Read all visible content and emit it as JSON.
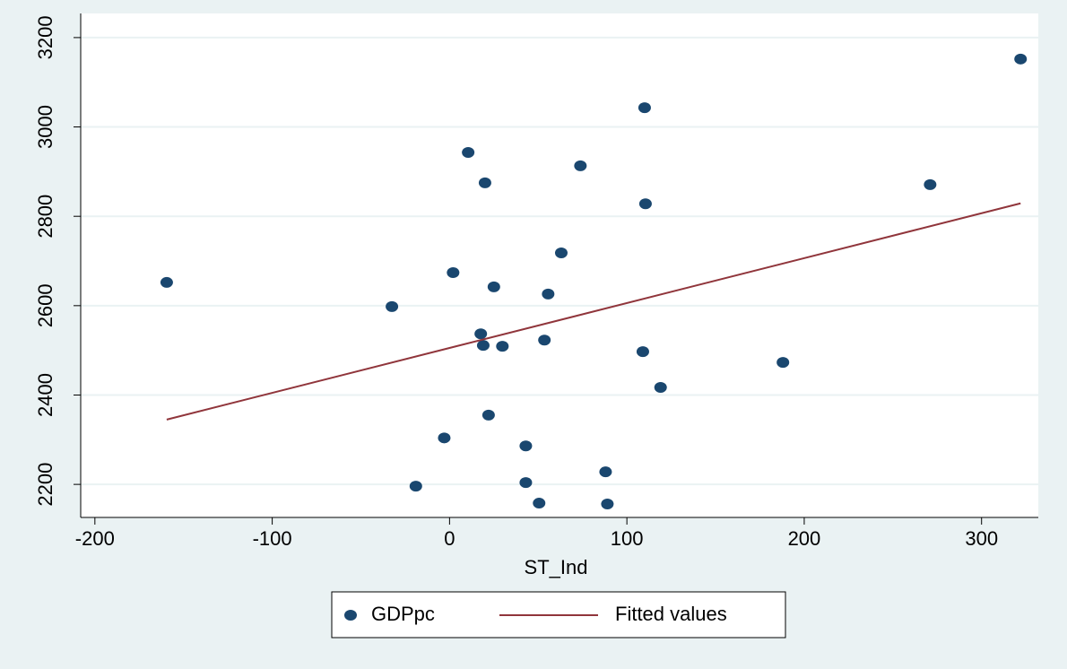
{
  "chart_data": {
    "type": "scatter",
    "xlabel": "ST_Ind",
    "xlim": [
      -208,
      332
    ],
    "xticks": [
      -200,
      -100,
      0,
      100,
      200,
      300
    ],
    "ylim": [
      2126,
      3254
    ],
    "yticks": [
      2200,
      2400,
      2600,
      2800,
      3000,
      3200
    ],
    "grid": true,
    "legend": "bottom",
    "series": [
      {
        "name": "GDPpc",
        "type": "scatter",
        "color": "#1a476f",
        "x": [
          -159.5,
          -32.5,
          2,
          10.5,
          20,
          25,
          17.6,
          19,
          29.8,
          22,
          -3,
          -19,
          43,
          43,
          50.5,
          53.5,
          55.6,
          63,
          73.8,
          88,
          89,
          110,
          110.5,
          109,
          119,
          188,
          271,
          322
        ],
        "values": [
          2652,
          2598,
          2674,
          2943,
          2875,
          2642,
          2537,
          2511,
          2509,
          2355,
          2304,
          2196,
          2286,
          2204,
          2158,
          2523,
          2626,
          2718,
          2913,
          2228,
          2156,
          3043,
          2828,
          2497,
          2417,
          2473,
          2871,
          3152
        ]
      },
      {
        "name": "Fitted values",
        "type": "line",
        "color": "#90353b",
        "x": [
          -159.5,
          322
        ],
        "values": [
          2345,
          2829
        ]
      }
    ]
  }
}
